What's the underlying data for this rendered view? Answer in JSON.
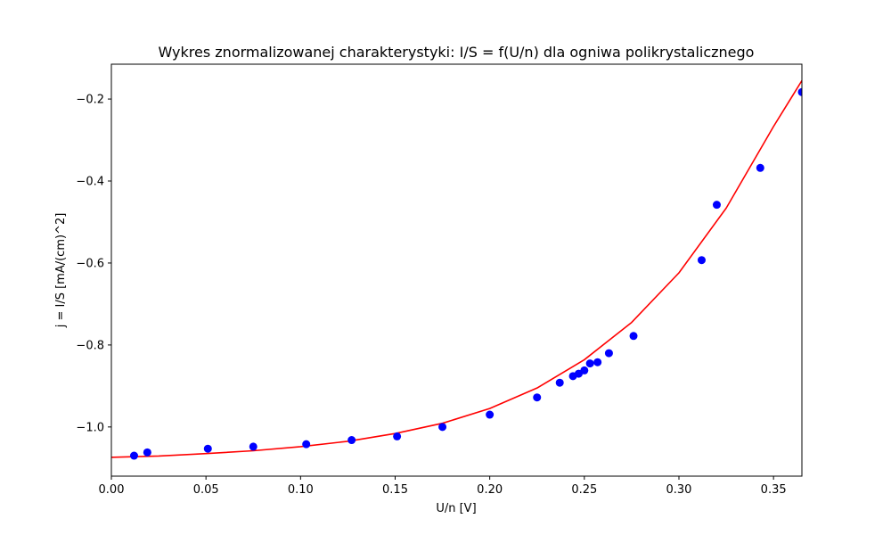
{
  "chart_data": {
    "type": "scatter",
    "title": "Wykres znormalizowanej charakterystyki: I/S = f(U/n) dla ogniwa polikrystalicznego",
    "xlabel": "U/n [V]",
    "ylabel": "j = I/S [mA/(cm)^2]",
    "xlim": [
      0.0,
      0.365
    ],
    "ylim": [
      -1.12,
      -0.115
    ],
    "xticks": [
      0.0,
      0.05,
      0.1,
      0.15,
      0.2,
      0.25,
      0.3,
      0.35
    ],
    "xtick_labels": [
      "0.00",
      "0.05",
      "0.10",
      "0.15",
      "0.20",
      "0.25",
      "0.30",
      "0.35"
    ],
    "yticks": [
      -1.0,
      -0.8,
      -0.6,
      -0.4,
      -0.2
    ],
    "ytick_labels": [
      "−1.0",
      "−0.8",
      "−0.6",
      "−0.4",
      "−0.2"
    ],
    "grid": false,
    "series": [
      {
        "kind": "points",
        "color": "#0000ff",
        "x": [
          0.012,
          0.019,
          0.051,
          0.075,
          0.103,
          0.127,
          0.151,
          0.175,
          0.2,
          0.225,
          0.237,
          0.244,
          0.247,
          0.25,
          0.253,
          0.257,
          0.263,
          0.276,
          0.312,
          0.32,
          0.343,
          0.365
        ],
        "y": [
          -1.07,
          -1.062,
          -1.053,
          -1.048,
          -1.042,
          -1.032,
          -1.023,
          -1.0,
          -0.97,
          -0.928,
          -0.892,
          -0.876,
          -0.87,
          -0.862,
          -0.845,
          -0.842,
          -0.82,
          -0.778,
          -0.593,
          -0.458,
          -0.368,
          -0.183
        ]
      },
      {
        "kind": "fit-curve",
        "color": "#ff0000",
        "x": [
          0.0,
          0.025,
          0.05,
          0.075,
          0.1,
          0.125,
          0.15,
          0.175,
          0.2,
          0.225,
          0.25,
          0.275,
          0.3,
          0.325,
          0.35,
          0.365
        ],
        "y": [
          -1.074,
          -1.071,
          -1.065,
          -1.058,
          -1.048,
          -1.035,
          -1.016,
          -0.991,
          -0.955,
          -0.905,
          -0.836,
          -0.745,
          -0.624,
          -0.466,
          -0.267,
          -0.155
        ]
      }
    ]
  }
}
